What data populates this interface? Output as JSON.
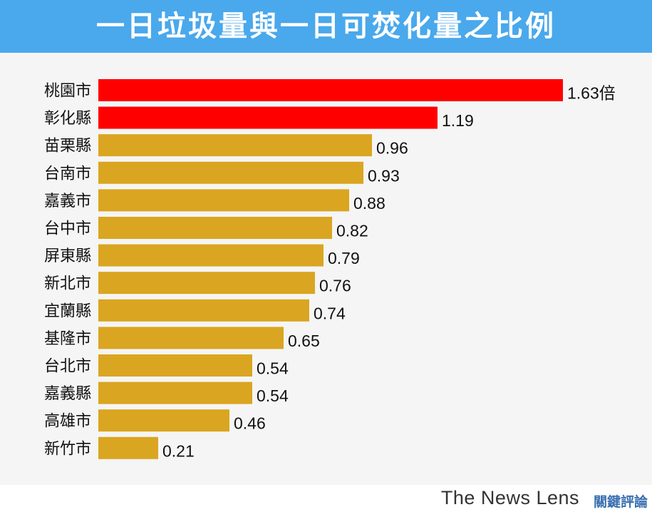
{
  "header": {
    "title": "一日垃圾量與一日可焚化量之比例"
  },
  "footer": {
    "brand": "The News Lens",
    "brand_cn": "關鍵評論"
  },
  "colors": {
    "header_bg": "#4aa8ec",
    "highlight": "#ff0000",
    "normal": "#daa520"
  },
  "chart_data": {
    "type": "bar",
    "orientation": "horizontal",
    "categories": [
      "桃園市",
      "彰化縣",
      "苗栗縣",
      "台南市",
      "嘉義市",
      "台中市",
      "屏東縣",
      "新北市",
      "宜蘭縣",
      "基隆市",
      "台北市",
      "嘉義縣",
      "高雄市",
      "新竹市"
    ],
    "values": [
      1.63,
      1.19,
      0.96,
      0.93,
      0.88,
      0.82,
      0.79,
      0.76,
      0.74,
      0.65,
      0.54,
      0.54,
      0.46,
      0.21
    ],
    "value_labels": [
      "1.63倍",
      "1.19",
      "0.96",
      "0.93",
      "0.88",
      "0.82",
      "0.79",
      "0.76",
      "0.74",
      "0.65",
      "0.54",
      "0.54",
      "0.46",
      "0.21"
    ],
    "highlighted": [
      true,
      true,
      false,
      false,
      false,
      false,
      false,
      false,
      false,
      false,
      false,
      false,
      false,
      false
    ],
    "xlim": [
      0,
      1.63
    ],
    "grid": false,
    "title": "一日垃圾量與一日可焚化量之比例"
  }
}
